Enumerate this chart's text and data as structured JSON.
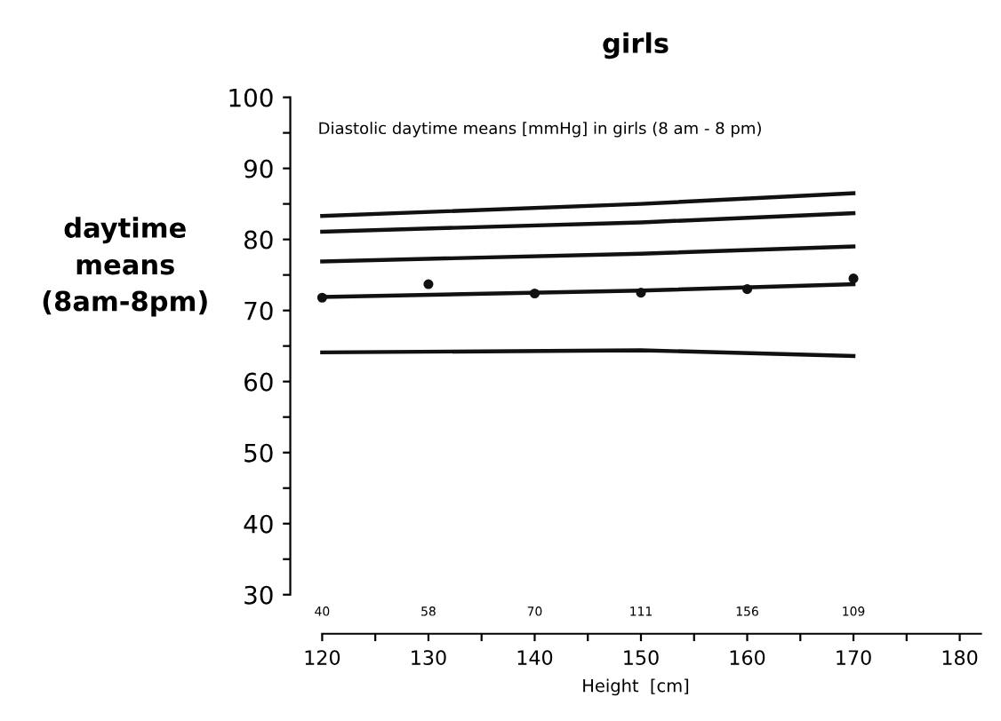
{
  "chart_data": {
    "type": "line",
    "title": "girls",
    "ylabel": "daytime\nmeans\n(8am-8pm)",
    "xlabel": "Height  [cm]",
    "annotations": [
      "Diastolic daytime means [mmHg] in girls (8 am - 8 pm)",
      "40",
      "58",
      "70",
      "111",
      "156",
      "109"
    ],
    "series": [
      {
        "color": "#111111",
        "x": [
          120,
          150,
          170
        ],
        "values": [
          83.3,
          85.0,
          86.5
        ]
      },
      {
        "color": "#111111",
        "x": [
          120,
          150,
          170
        ],
        "values": [
          81.1,
          82.4,
          83.7
        ]
      },
      {
        "color": "#111111",
        "x": [
          120,
          150,
          170
        ],
        "values": [
          76.9,
          78.0,
          79.0
        ]
      },
      {
        "color": "#111111",
        "x": [
          120,
          150,
          170
        ],
        "values": [
          71.9,
          72.8,
          73.7
        ]
      },
      {
        "color": "#111111",
        "x": [
          120,
          150,
          170
        ],
        "values": [
          64.1,
          64.4,
          63.6
        ]
      },
      {
        "type": "scatter",
        "color": "#111111",
        "x": [
          120,
          130,
          140,
          150,
          160,
          170
        ],
        "values": [
          71.8,
          73.7,
          72.4,
          72.5,
          73.0,
          74.5
        ]
      }
    ],
    "xlim": [
      117,
      182
    ],
    "ylim": [
      24.5,
      100
    ],
    "xticks": [
      120,
      {
        "value": 125,
        "label": null
      },
      130,
      {
        "value": 135,
        "label": null
      },
      140,
      {
        "value": 145,
        "label": null
      },
      150,
      {
        "value": 155,
        "label": null
      },
      160,
      {
        "value": 165,
        "label": null
      },
      170,
      {
        "value": 175,
        "label": null
      },
      180
    ],
    "yticks": [
      30,
      {
        "value": 35,
        "label": null
      },
      40,
      {
        "value": 45,
        "label": null
      },
      50,
      {
        "value": 55,
        "label": null
      },
      60,
      {
        "value": 65,
        "label": null
      },
      70,
      {
        "value": 75,
        "label": null
      },
      80,
      {
        "value": 85,
        "label": null
      },
      90,
      {
        "value": 95,
        "label": null
      },
      100
    ],
    "grid": false,
    "legend": false
  }
}
